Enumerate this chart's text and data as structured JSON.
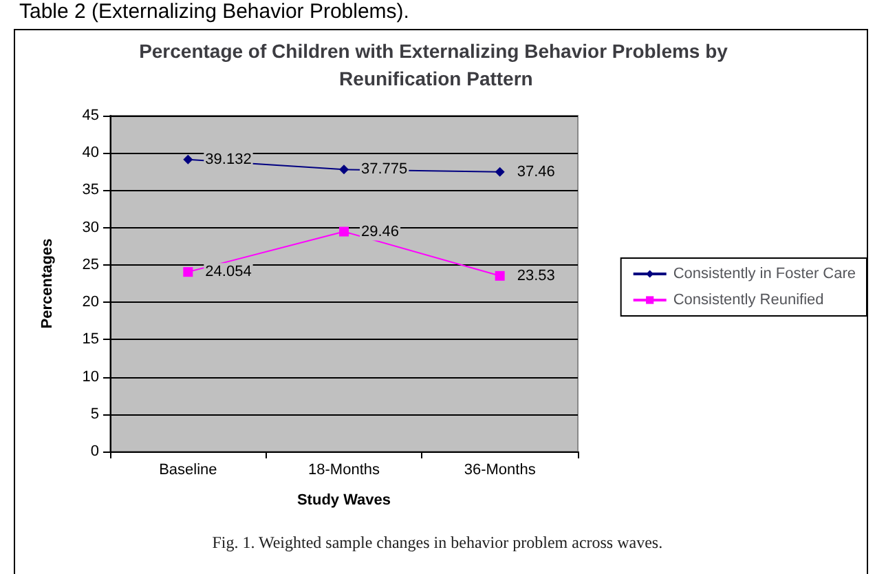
{
  "chart_data": {
    "type": "line",
    "title": "Percentage of Children with Externalizing Behavior Problems by Reunification Pattern",
    "xlabel": "Study Waves",
    "ylabel": "Percentages",
    "categories": [
      "Baseline",
      "18-Months",
      "36-Months"
    ],
    "series": [
      {
        "name": "Consistently in Foster Care",
        "color": "#000080",
        "marker": "diamond",
        "values": [
          39.132,
          37.775,
          37.46
        ]
      },
      {
        "name": "Consistently Reunified",
        "color": "#ff00ff",
        "marker": "square",
        "values": [
          24.054,
          29.46,
          23.53
        ]
      }
    ],
    "ylim": [
      0,
      45
    ],
    "yticks": [
      0,
      5,
      10,
      15,
      20,
      25,
      30,
      35,
      40,
      45
    ],
    "grid": "y",
    "legend": "right",
    "data_labels": true,
    "annotations": [
      "Table 2 (Externalizing Behavior Problems).",
      "Fig. 1. Weighted sample changes in behavior problem across waves."
    ]
  }
}
